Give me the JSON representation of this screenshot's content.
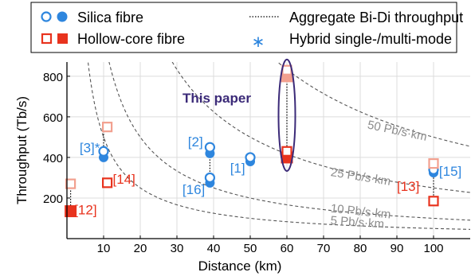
{
  "colors": {
    "silica": "#2e86de",
    "hollow": "#e8331e",
    "hollow_light": "#f2a08f",
    "silica_light": "#a9cdf2",
    "curve": "#8c8c8c",
    "ellipse": "#3b2a78",
    "axis": "#000000"
  },
  "legend": {
    "items": [
      {
        "label": "Silica fibre",
        "icon": "circle-open-filled"
      },
      {
        "label": "Aggregate Bi-Di throughput",
        "icon": "dotted-line"
      },
      {
        "label": "Hollow-core fibre",
        "icon": "square-open-filled"
      },
      {
        "label": "Hybrid single-/multi-mode",
        "icon": "asterisk"
      }
    ]
  },
  "chart_data": {
    "type": "scatter",
    "xlabel": "Distance (km)",
    "ylabel": "Throughput (Tb/s)",
    "xlim": [
      0,
      110
    ],
    "ylim": [
      0,
      870
    ],
    "xticks": [
      10,
      20,
      30,
      40,
      50,
      60,
      70,
      80,
      90,
      100
    ],
    "yticks": [
      200,
      400,
      600,
      800
    ],
    "grid": true,
    "legend_position": "top",
    "series": [
      {
        "name": "Silica fibre",
        "marker": "circle",
        "points": [
          {
            "x": 10,
            "y": 400,
            "fill": "filled"
          },
          {
            "x": 10,
            "y": 430,
            "fill": "open"
          },
          {
            "x": 39,
            "y": 275,
            "fill": "filled"
          },
          {
            "x": 39,
            "y": 300,
            "fill": "open"
          },
          {
            "x": 39,
            "y": 420,
            "fill": "filled"
          },
          {
            "x": 39,
            "y": 450,
            "fill": "open"
          },
          {
            "x": 50,
            "y": 380,
            "fill": "filled"
          },
          {
            "x": 50,
            "y": 400,
            "fill": "open"
          },
          {
            "x": 100,
            "y": 325,
            "fill": "filled"
          },
          {
            "x": 100,
            "y": 340,
            "fill": "open"
          }
        ]
      },
      {
        "name": "Hollow-core fibre",
        "marker": "square",
        "points": [
          {
            "x": 1,
            "y": 135,
            "fill": "filled"
          },
          {
            "x": 1,
            "y": 270,
            "fill": "open"
          },
          {
            "x": 11,
            "y": 275,
            "fill": "open"
          },
          {
            "x": 11,
            "y": 550,
            "fill": "open"
          },
          {
            "x": 60,
            "y": 400,
            "fill": "filled"
          },
          {
            "x": 60,
            "y": 430,
            "fill": "open"
          },
          {
            "x": 60,
            "y": 800,
            "fill": "filled"
          },
          {
            "x": 60,
            "y": 830,
            "fill": "open"
          },
          {
            "x": 100,
            "y": 185,
            "fill": "open"
          },
          {
            "x": 100,
            "y": 370,
            "fill": "open"
          }
        ]
      }
    ],
    "aggregate_lines": [
      {
        "x": 1,
        "from": 135,
        "to": 270
      },
      {
        "x": 10,
        "from": 400,
        "to": 550
      },
      {
        "x": 39,
        "from": 275,
        "to": 450
      },
      {
        "x": 60,
        "from": 400,
        "to": 830
      },
      {
        "x": 100,
        "from": 185,
        "to": 370
      }
    ],
    "iso_curves": [
      {
        "label": "50 Pb/s·km",
        "product": 50000
      },
      {
        "label": "25 Pb/s·km",
        "product": 25000
      },
      {
        "label": "10 Pb/s·km",
        "product": 10000
      },
      {
        "label": "5 Pb/s·km",
        "product": 5000
      }
    ],
    "reference_labels": [
      {
        "text": "[3]*",
        "series": "silica"
      },
      {
        "text": "[14]",
        "series": "hollow"
      },
      {
        "text": "[2]",
        "series": "silica"
      },
      {
        "text": "[16]",
        "series": "silica"
      },
      {
        "text": "[1]",
        "series": "silica"
      },
      {
        "text": "[12]",
        "series": "hollow"
      },
      {
        "text": "[13]",
        "series": "hollow"
      },
      {
        "text": "[15]",
        "series": "silica"
      }
    ],
    "annotation": "This paper",
    "hybrid_marker": {
      "x": 10,
      "y": 430,
      "symbol": "*"
    }
  }
}
